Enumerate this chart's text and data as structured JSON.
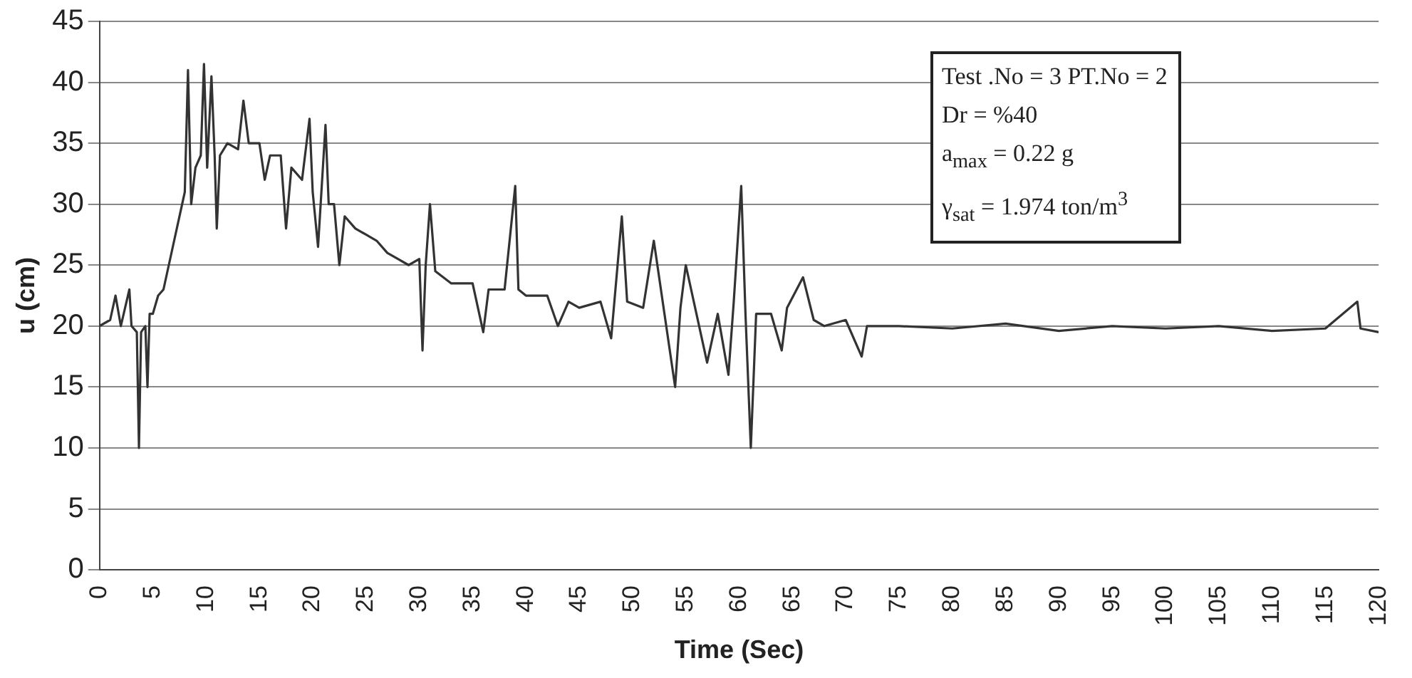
{
  "chart_data": {
    "type": "line",
    "xlabel": "Time (Sec)",
    "ylabel": "u (cm)",
    "x": [
      0,
      1,
      1.5,
      2,
      2.8,
      3,
      3.5,
      3.7,
      3.9,
      4.3,
      4.5,
      4.7,
      5,
      5.5,
      6,
      6.5,
      7,
      7.5,
      8,
      8.3,
      8.6,
      9,
      9.5,
      9.8,
      10.1,
      10.5,
      10.8,
      11,
      11.3,
      12,
      13,
      13.5,
      14,
      15,
      15.5,
      16,
      17,
      17.5,
      18,
      19,
      19.7,
      20,
      20.5,
      21.2,
      21.5,
      22,
      22.5,
      23,
      24,
      25,
      26,
      27,
      28,
      29,
      30,
      30.3,
      30.6,
      31,
      31.5,
      33,
      35,
      36,
      36.5,
      38,
      39,
      39.3,
      40,
      42,
      43,
      44,
      45,
      47,
      48,
      49,
      49.5,
      51,
      52,
      53,
      54,
      54.5,
      55,
      56,
      57,
      58,
      59,
      59.5,
      60.2,
      60.6,
      61.1,
      61.6,
      63,
      64,
      64.5,
      66,
      67,
      68,
      70,
      71.5,
      72,
      75,
      80,
      85,
      90,
      95,
      100,
      105,
      110,
      115,
      118,
      118.3,
      120
    ],
    "series": [
      {
        "color": "#333333",
        "values": [
          20,
          20.5,
          22.5,
          20,
          23,
          20,
          19.5,
          10,
          19.5,
          20,
          15,
          21,
          21,
          22.5,
          23,
          25,
          27,
          29,
          31,
          41,
          30,
          33,
          34,
          41.5,
          33,
          40.5,
          34,
          28,
          34,
          35,
          34.5,
          38.5,
          35,
          35,
          32,
          34,
          34,
          28,
          33,
          32,
          37,
          31,
          26.5,
          36.5,
          30,
          30,
          25,
          29,
          28,
          27.5,
          27,
          26,
          25.5,
          25,
          25.5,
          18,
          25,
          30,
          24.5,
          23.5,
          23.5,
          19.5,
          23,
          23,
          31.5,
          23,
          22.5,
          22.5,
          20,
          22,
          21.5,
          22,
          19,
          29,
          22,
          21.5,
          27,
          21,
          15,
          21.5,
          25,
          21,
          17,
          21,
          16,
          22,
          31.5,
          21,
          10,
          21,
          21,
          18,
          21.5,
          24,
          20.5,
          20,
          20.5,
          17.5,
          20,
          20,
          19.8,
          20.2,
          19.6,
          20,
          19.8,
          20,
          19.6,
          19.8,
          22,
          19.8,
          19.5
        ]
      }
    ],
    "xlim": [
      0,
      120
    ],
    "xticks": [
      0,
      5,
      10,
      15,
      20,
      25,
      30,
      35,
      40,
      45,
      50,
      55,
      60,
      65,
      70,
      75,
      80,
      85,
      90,
      95,
      100,
      105,
      110,
      115,
      120
    ],
    "ylim": [
      0,
      45
    ],
    "yticks": [
      0,
      5,
      10,
      15,
      20,
      25,
      30,
      35,
      40,
      45
    ],
    "grid": "y",
    "legend": false,
    "marker": "none",
    "line_style": "solid",
    "annotations": [
      "Test .No = 3    PT.No = 2",
      "Dr = %40",
      "a$_{max}$ = 0.22 g",
      "γ$_{sat}$ = 1.974 ton/m$^{3}$"
    ]
  }
}
